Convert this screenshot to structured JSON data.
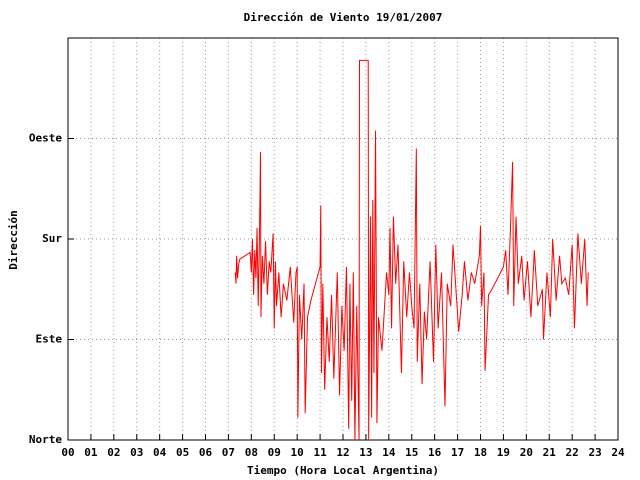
{
  "chart_data": {
    "type": "line",
    "title": "Dirección de Viento 19/01/2007",
    "xlabel": "Tiempo (Hora Local Argentina)",
    "ylabel": "Dirección",
    "xlim": [
      0,
      24
    ],
    "ylim": [
      0,
      360
    ],
    "xticks": [
      {
        "value": 0,
        "label": "00"
      },
      {
        "value": 1,
        "label": "01"
      },
      {
        "value": 2,
        "label": "02"
      },
      {
        "value": 3,
        "label": "03"
      },
      {
        "value": 4,
        "label": "04"
      },
      {
        "value": 5,
        "label": "05"
      },
      {
        "value": 6,
        "label": "06"
      },
      {
        "value": 7,
        "label": "07"
      },
      {
        "value": 8,
        "label": "08"
      },
      {
        "value": 9,
        "label": "09"
      },
      10,
      11,
      12,
      13,
      14,
      15,
      16,
      17,
      18,
      19,
      20,
      21,
      22,
      23,
      24
    ],
    "yticks": [
      {
        "value": 0,
        "label": "Norte"
      },
      {
        "value": 90,
        "label": "Este"
      },
      {
        "value": 180,
        "label": "Sur"
      },
      {
        "value": 270,
        "label": "Oeste"
      }
    ],
    "grid": true,
    "color": "#ff0000",
    "x": [
      7.3,
      7.33,
      7.36,
      7.4,
      7.45,
      7.5,
      7.95,
      8.0,
      8.05,
      8.1,
      8.15,
      8.2,
      8.25,
      8.3,
      8.35,
      8.4,
      8.42,
      8.48,
      8.55,
      8.62,
      8.7,
      8.78,
      8.85,
      8.95,
      9.0,
      9.05,
      9.1,
      9.2,
      9.3,
      9.4,
      9.55,
      9.7,
      9.85,
      9.95,
      10.0,
      10.03,
      10.1,
      10.2,
      10.3,
      10.35,
      10.45,
      10.6,
      11.0,
      11.03,
      11.06,
      11.12,
      11.2,
      11.3,
      11.4,
      11.5,
      11.6,
      11.75,
      11.85,
      11.95,
      12.05,
      12.15,
      12.25,
      12.3,
      12.38,
      12.45,
      12.52,
      12.6,
      12.7,
      12.72,
      13.1,
      13.12,
      13.2,
      13.25,
      13.3,
      13.35,
      13.42,
      13.48,
      13.55,
      13.7,
      13.9,
      14.0,
      14.05,
      14.12,
      14.2,
      14.3,
      14.4,
      14.55,
      14.65,
      14.78,
      14.9,
      15.0,
      15.1,
      15.2,
      15.24,
      15.35,
      15.45,
      15.55,
      15.65,
      15.8,
      15.95,
      16.05,
      16.15,
      16.3,
      16.45,
      16.55,
      16.7,
      16.8,
      17.05,
      17.2,
      17.3,
      17.45,
      17.6,
      17.75,
      17.95,
      18.0,
      18.05,
      18.15,
      18.2,
      18.35,
      18.5,
      19.0,
      19.1,
      19.2,
      19.3,
      19.4,
      19.45,
      19.55,
      19.65,
      19.8,
      19.9,
      20.05,
      20.2,
      20.35,
      20.5,
      20.7,
      20.75,
      20.9,
      21.05,
      21.15,
      21.3,
      21.45,
      21.55,
      21.7,
      21.85,
      22.0,
      22.1,
      22.25,
      22.4,
      22.55,
      22.65,
      22.7
    ],
    "values": [
      150,
      140,
      165,
      145,
      158,
      162,
      168,
      150,
      180,
      130,
      170,
      145,
      190,
      120,
      175,
      258,
      110,
      165,
      140,
      178,
      130,
      160,
      150,
      185,
      100,
      160,
      120,
      150,
      110,
      140,
      125,
      155,
      105,
      150,
      155,
      20,
      130,
      90,
      140,
      24,
      110,
      125,
      155,
      210,
      60,
      140,
      45,
      110,
      70,
      130,
      55,
      150,
      40,
      120,
      80,
      155,
      10,
      140,
      35,
      150,
      0,
      120,
      0,
      340,
      340,
      0,
      200,
      20,
      215,
      60,
      277,
      15,
      110,
      80,
      150,
      130,
      190,
      100,
      200,
      140,
      175,
      60,
      160,
      110,
      150,
      120,
      100,
      261,
      70,
      140,
      50,
      115,
      90,
      160,
      70,
      175,
      100,
      150,
      30,
      140,
      120,
      175,
      97,
      130,
      160,
      125,
      150,
      140,
      165,
      192,
      120,
      150,
      62,
      130,
      135,
      155,
      170,
      130,
      185,
      249,
      120,
      200,
      140,
      165,
      125,
      160,
      110,
      170,
      120,
      135,
      90,
      150,
      110,
      180,
      125,
      165,
      140,
      145,
      130,
      175,
      100,
      185,
      140,
      180,
      120,
      150
    ]
  }
}
